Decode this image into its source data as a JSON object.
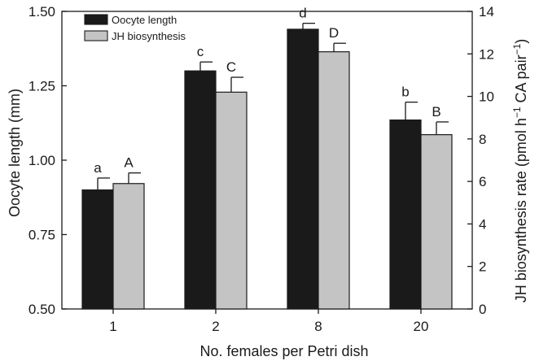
{
  "chart_data": {
    "type": "bar",
    "categories": [
      "1",
      "2",
      "8",
      "20"
    ],
    "xlabel": "No. females per Petri dish",
    "ylabel_left": "Oocyte length (mm)",
    "ylabel_right_parts": [
      "JH biosynthesis rate (pmol h",
      "−1",
      " CA pair",
      "−1",
      ")"
    ],
    "left_axis": {
      "ylim": [
        0.5,
        1.5
      ],
      "ticks": [
        "0.50",
        "0.75",
        "1.00",
        "1.25",
        "1.50"
      ]
    },
    "right_axis": {
      "ylim": [
        0,
        14
      ],
      "ticks": [
        "0",
        "2",
        "4",
        "6",
        "8",
        "10",
        "12",
        "14"
      ]
    },
    "legend_position": "top-left",
    "series": [
      {
        "name": "Oocyte length",
        "axis": "left",
        "color": "#1a1a1a",
        "values": [
          0.9,
          1.3,
          1.44,
          1.135
        ],
        "errors": [
          0.04,
          0.03,
          0.02,
          0.06
        ],
        "labels": [
          "a",
          "c",
          "d",
          "b"
        ]
      },
      {
        "name": "JH biosynthesis",
        "axis": "right",
        "color": "#c4c4c4",
        "values": [
          5.9,
          10.2,
          12.1,
          8.2
        ],
        "errors": [
          0.5,
          0.7,
          0.4,
          0.6
        ],
        "labels": [
          "A",
          "C",
          "D",
          "B"
        ]
      }
    ]
  }
}
